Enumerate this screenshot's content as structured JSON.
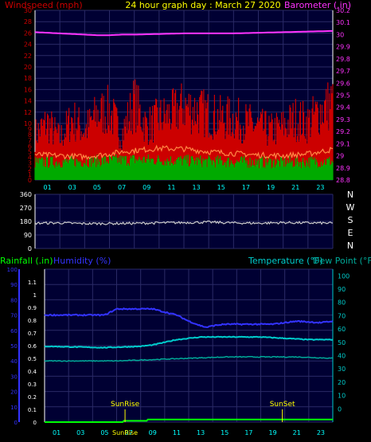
{
  "header": {
    "left_label": "Windspeed (mph)",
    "title": "24 hour graph day : March 27 2020",
    "right_label": "Barometer (.in)"
  },
  "colors": {
    "background": "#000000",
    "plot_bg": "#000033",
    "grid": "#2a2a66",
    "axis": "#ffffff",
    "windspeed_label": "#cc0000",
    "title": "#ffff00",
    "barometer": "#ff33ff",
    "gust": "#cc0000",
    "avg_wind": "#ff8844",
    "wind_low": "#00aa00",
    "direction": "#cccccc",
    "rainfall": "#00ff00",
    "humidity": "#3333ff",
    "temperature": "#00cccc",
    "dewpoint": "#00aa99",
    "x_tick": "#00ffff",
    "sun_marker": "#ffff00"
  },
  "chart_data": [
    {
      "id": "wind-baro",
      "type": "line",
      "x_ticks": [
        "01",
        "03",
        "05",
        "07",
        "09",
        "11",
        "13",
        "15",
        "17",
        "19",
        "21",
        "23"
      ],
      "left_axis": {
        "label": "Windspeed (mph)",
        "ylim": [
          0,
          30
        ],
        "ticks": [
          "0",
          "1",
          "2",
          "3",
          "4",
          "5",
          "6",
          "7",
          "8",
          "9",
          "10",
          "12",
          "14",
          "16",
          "18",
          "20",
          "22",
          "24",
          "26",
          "28",
          "30"
        ]
      },
      "right_axis": {
        "label": "Barometer (.in)",
        "ylim": [
          28.8,
          30.2
        ],
        "ticks": [
          "28.8",
          "28.9",
          "29",
          "29.1",
          "29.2",
          "29.3",
          "29.4",
          "29.5",
          "29.6",
          "29.7",
          "29.8",
          "29.9",
          "30",
          "30.1",
          "30.2"
        ]
      },
      "series": [
        {
          "role": "barometer",
          "hours": [
            0,
            2,
            4,
            5,
            6,
            7,
            8,
            10,
            12,
            14,
            16,
            18,
            20,
            22,
            24
          ],
          "values": [
            30.02,
            30.01,
            30.0,
            29.995,
            29.995,
            30.0,
            30.0,
            30.005,
            30.01,
            30.01,
            30.01,
            30.015,
            30.02,
            30.025,
            30.03
          ]
        },
        {
          "role": "gust_peaks",
          "hours": [
            0,
            1,
            2,
            3,
            4,
            5,
            6,
            7,
            8,
            9,
            10,
            11,
            12,
            13,
            14,
            15,
            16,
            17,
            18,
            19,
            20,
            21,
            22,
            23,
            24
          ],
          "values": [
            11,
            14,
            10,
            15,
            12,
            16,
            17,
            11,
            19,
            13,
            15,
            16,
            18,
            17,
            16,
            15,
            15,
            14,
            13,
            12,
            13,
            15,
            14,
            17,
            19
          ]
        },
        {
          "role": "average_wind",
          "hours": [
            0,
            2,
            4,
            6,
            7,
            8,
            9,
            10,
            12,
            14,
            16,
            18,
            20,
            22,
            23,
            24
          ],
          "values": [
            4.5,
            4.3,
            4.1,
            4.6,
            5.0,
            5.2,
            5.4,
            5.6,
            5.5,
            5.0,
            4.7,
            4.4,
            4.3,
            4.6,
            5.0,
            5.4
          ]
        },
        {
          "role": "wind_low",
          "hours": [
            0,
            4,
            8,
            12,
            16,
            20,
            24
          ],
          "values": [
            2,
            2.2,
            2.5,
            2.3,
            2.1,
            2.0,
            2.2
          ]
        }
      ]
    },
    {
      "id": "direction",
      "type": "line",
      "left_axis": {
        "ylim": [
          0,
          360
        ],
        "ticks": [
          "0",
          "90",
          "180",
          "270",
          "360"
        ]
      },
      "compass_labels": [
        "N",
        "W",
        "S",
        "E",
        "N"
      ],
      "series": [
        {
          "role": "wind_direction",
          "hours": [
            0,
            2,
            4,
            6,
            8,
            10,
            12,
            14,
            16,
            18,
            20,
            22,
            24
          ],
          "values": [
            168,
            170,
            165,
            166,
            167,
            170,
            172,
            175,
            170,
            168,
            172,
            170,
            168
          ]
        }
      ]
    },
    {
      "id": "rain-hum-temp",
      "type": "line",
      "x_ticks": [
        "01",
        "03",
        "05",
        "07",
        "09",
        "11",
        "13",
        "15",
        "17",
        "19",
        "21",
        "23"
      ],
      "header_labels": {
        "rainfall": "Rainfall (.in)",
        "humidity": "Humidity (%)",
        "temperature": "Temperature (°F)",
        "dewpoint": "Dew Point (°F)"
      },
      "left_axis_humidity": {
        "ylim": [
          0,
          100
        ],
        "ticks": [
          "0",
          "10",
          "20",
          "30",
          "40",
          "50",
          "60",
          "70",
          "80",
          "90",
          "100"
        ]
      },
      "left_axis_rain": {
        "ylim": [
          0,
          1.2
        ],
        "ticks": [
          "0",
          "0.1",
          "0.2",
          "0.3",
          "0.4",
          "0.5",
          "0.6",
          "0.7",
          "0.8",
          "0.9",
          "1",
          "1.1"
        ]
      },
      "right_axis_temp": {
        "ylim": [
          -10,
          105
        ],
        "ticks": [
          "0",
          "10",
          "20",
          "30",
          "40",
          "50",
          "60",
          "70",
          "80",
          "90",
          "100"
        ]
      },
      "series": [
        {
          "role": "humidity",
          "hours": [
            0,
            5,
            5.5,
            6,
            9,
            9.5,
            11,
            12,
            13,
            13.5,
            14,
            15,
            17,
            19,
            20,
            21,
            23,
            24
          ],
          "values": [
            70,
            70,
            72,
            74,
            74,
            73,
            70,
            66,
            63,
            62,
            63,
            64,
            64,
            64,
            65,
            66,
            65,
            66
          ]
        },
        {
          "role": "temperature",
          "hours": [
            0,
            5,
            8,
            9,
            10,
            11,
            12,
            13,
            14,
            16,
            18,
            20,
            22,
            24
          ],
          "values": [
            47,
            46,
            47,
            48,
            50,
            52,
            53,
            54,
            54,
            54,
            54,
            53,
            52,
            52
          ]
        },
        {
          "role": "dewpoint",
          "hours": [
            0,
            6,
            9,
            12,
            15,
            18,
            21,
            24
          ],
          "values": [
            36,
            36,
            37,
            38,
            39,
            39,
            39,
            38
          ]
        },
        {
          "role": "rainfall",
          "hours": [
            0,
            6.5,
            6.6,
            8.5,
            8.6,
            24
          ],
          "values": [
            0,
            0,
            0.01,
            0.01,
            0.02,
            0.02
          ]
        }
      ],
      "markers": {
        "sunrise_label": "SunRise",
        "sunset_label": "SunSet",
        "sunrise_hour": 6.7,
        "sunset_hour": 19.8
      }
    }
  ]
}
